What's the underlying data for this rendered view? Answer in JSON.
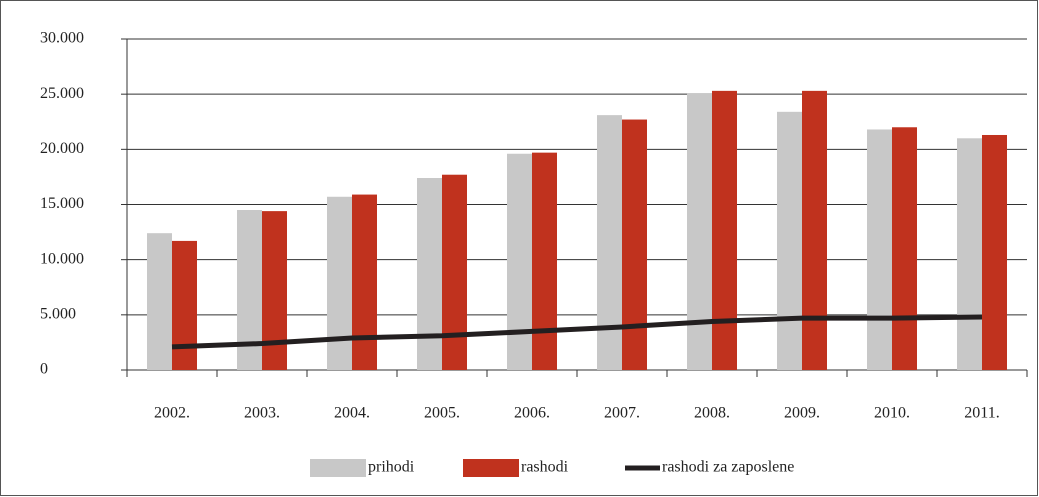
{
  "chart_data": {
    "type": "bar",
    "categories": [
      "2002.",
      "2003.",
      "2004.",
      "2005.",
      "2006.",
      "2007.",
      "2008.",
      "2009.",
      "2010.",
      "2011."
    ],
    "series": [
      {
        "name": "prihodi",
        "type": "bar",
        "color": "#c8c8c8",
        "values": [
          12400,
          14500,
          15700,
          17400,
          19600,
          23100,
          25100,
          23400,
          21800,
          21000
        ]
      },
      {
        "name": "rashodi",
        "type": "bar",
        "color": "#c0321e",
        "values": [
          11700,
          14400,
          15900,
          17700,
          19700,
          22700,
          25300,
          25300,
          22000,
          21300
        ]
      },
      {
        "name": "rashodi za zaposlene",
        "type": "line",
        "color": "#231f20",
        "values": [
          2100,
          2400,
          2900,
          3100,
          3500,
          3900,
          4400,
          4700,
          4700,
          4800
        ]
      }
    ],
    "ylim": [
      0,
      30000
    ],
    "yticks": [
      0,
      {
        "value": 5000,
        "label": "5.000"
      },
      {
        "value": 10000,
        "label": "10.000"
      },
      {
        "value": 15000,
        "label": "15.000"
      },
      {
        "value": 20000,
        "label": "20.000"
      },
      {
        "value": 25000,
        "label": "25.000"
      },
      {
        "value": 30000,
        "label": "30.000"
      }
    ],
    "grid": true,
    "legend": "bottom"
  }
}
